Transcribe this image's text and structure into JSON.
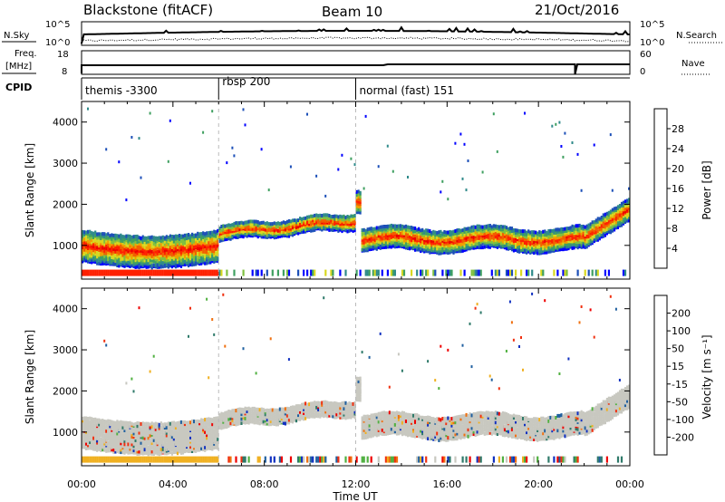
{
  "header": {
    "station": "Blackstone (fitACF)",
    "beam": "Beam 10",
    "date": "21/Oct/2016"
  },
  "summary_panels": {
    "nsky_label": "N.Sky",
    "nsearch_label": "N.Search",
    "nsky_ticks": [
      "10^5",
      "10^0"
    ],
    "nsearch_ticks": [
      "10^5",
      "10^0"
    ],
    "freq_label_line1": "Freq.",
    "freq_label_line2": "[MHz]",
    "freq_ticks": [
      "18",
      "8"
    ],
    "nave_label": "Nave",
    "nave_ticks": [
      "60",
      "0"
    ],
    "cpid_label": "CPID"
  },
  "chart_data": [
    {
      "type": "heatmap",
      "name_field": "Power",
      "ylabel": "Slant Range [km]",
      "xlabel": "Time UT",
      "yticks": [
        "1000",
        "2000",
        "3000",
        "4000"
      ],
      "ylim": [
        180,
        4500
      ],
      "xlim": [
        0,
        24
      ],
      "colorbar_label": "Power [dB]",
      "colorbar_ticks": [
        "4",
        "8",
        "12",
        "16",
        "20",
        "24",
        "28"
      ],
      "colorbar_colors": [
        "#0000ff",
        "#1c4fb8",
        "#2f8a8a",
        "#3fa060",
        "#7fc040",
        "#d8d820",
        "#f0a000",
        "#f06000",
        "#ff2000",
        "#ee0000"
      ]
    },
    {
      "type": "heatmap",
      "name_field": "Velocity",
      "ylabel": "Slant Range [km]",
      "xlabel": "Time UT",
      "yticks": [
        "1000",
        "2000",
        "3000",
        "4000"
      ],
      "ylim": [
        180,
        4500
      ],
      "xlim": [
        0,
        24
      ],
      "colorbar_label": "Velocity [m s⁻¹]",
      "colorbar_ticks": [
        "200",
        "100",
        "50",
        "15",
        "-15",
        "-50",
        "-100",
        "-200"
      ],
      "colorbar_colors": [
        "#1030c0",
        "#2060a0",
        "#2f7a6a",
        "#50b040",
        "#c8c8c0",
        "#f0b020",
        "#f07010",
        "#f03010",
        "#ee0000"
      ]
    }
  ],
  "cpid_segments": [
    {
      "label": "themis -3300",
      "start": 0
    },
    {
      "label": "rbsp 200",
      "start": 6.0
    },
    {
      "label": "normal (fast) 151",
      "start": 12.0
    }
  ],
  "xaxis": {
    "ticks": [
      "00:00",
      "04:00",
      "08:00",
      "12:00",
      "16:00",
      "20:00",
      "00:00"
    ],
    "label": "Time UT"
  },
  "colors": {
    "velocity_gray": "#c8c8c0"
  }
}
